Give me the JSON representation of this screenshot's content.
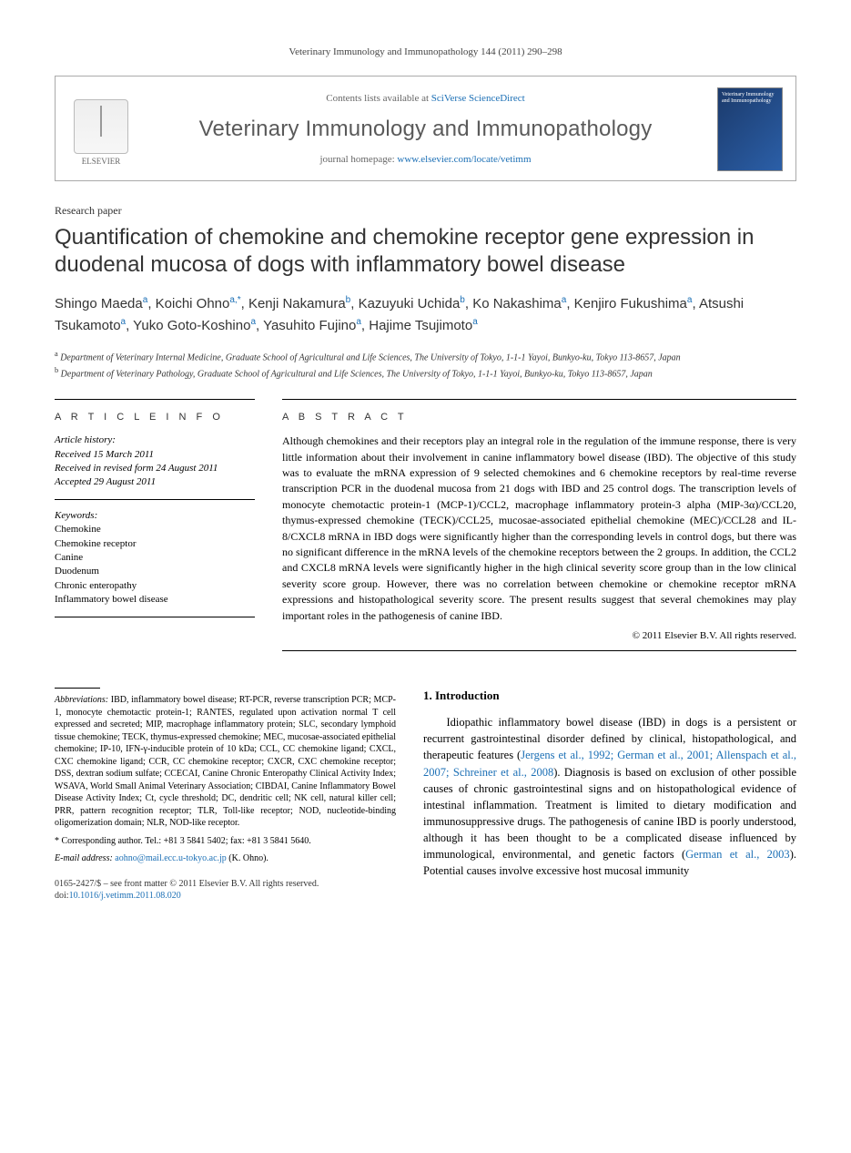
{
  "page_header": "Veterinary Immunology and Immunopathology 144 (2011) 290–298",
  "header": {
    "contents_prefix": "Contents lists available at ",
    "contents_link": "SciVerse ScienceDirect",
    "journal_name": "Veterinary Immunology and Immunopathology",
    "homepage_prefix": "journal homepage: ",
    "homepage_link": "www.elsevier.com/locate/vetimm",
    "publisher": "ELSEVIER",
    "cover_text": "Veterinary Immunology and Immunopathology"
  },
  "article": {
    "type": "Research paper",
    "title": "Quantification of chemokine and chemokine receptor gene expression in duodenal mucosa of dogs with inflammatory bowel disease",
    "authors_html": "Shingo Maeda<sup>a</sup>, Koichi Ohno<sup>a,*</sup>, Kenji Nakamura<sup>b</sup>, Kazuyuki Uchida<sup>b</sup>, Ko Nakashima<sup>a</sup>, Kenjiro Fukushima<sup>a</sup>, Atsushi Tsukamoto<sup>a</sup>, Yuko Goto-Koshino<sup>a</sup>, Yasuhito Fujino<sup>a</sup>, Hajime Tsujimoto<sup>a</sup>",
    "affiliations": [
      {
        "sup": "a",
        "text": "Department of Veterinary Internal Medicine, Graduate School of Agricultural and Life Sciences, The University of Tokyo, 1-1-1 Yayoi, Bunkyo-ku, Tokyo 113-8657, Japan"
      },
      {
        "sup": "b",
        "text": "Department of Veterinary Pathology, Graduate School of Agricultural and Life Sciences, The University of Tokyo, 1-1-1 Yayoi, Bunkyo-ku, Tokyo 113-8657, Japan"
      }
    ]
  },
  "info": {
    "heading": "A R T I C L E   I N F O",
    "history_title": "Article history:",
    "history": [
      "Received 15 March 2011",
      "Received in revised form 24 August 2011",
      "Accepted 29 August 2011"
    ],
    "keywords_title": "Keywords:",
    "keywords": [
      "Chemokine",
      "Chemokine receptor",
      "Canine",
      "Duodenum",
      "Chronic enteropathy",
      "Inflammatory bowel disease"
    ]
  },
  "abstract": {
    "heading": "A B S T R A C T",
    "text": "Although chemokines and their receptors play an integral role in the regulation of the immune response, there is very little information about their involvement in canine inflammatory bowel disease (IBD). The objective of this study was to evaluate the mRNA expression of 9 selected chemokines and 6 chemokine receptors by real-time reverse transcription PCR in the duodenal mucosa from 21 dogs with IBD and 25 control dogs. The transcription levels of monocyte chemotactic protein-1 (MCP-1)/CCL2, macrophage inflammatory protein-3 alpha (MIP-3α)/CCL20, thymus-expressed chemokine (TECK)/CCL25, mucosae-associated epithelial chemokine (MEC)/CCL28 and IL-8/CXCL8 mRNA in IBD dogs were significantly higher than the corresponding levels in control dogs, but there was no significant difference in the mRNA levels of the chemokine receptors between the 2 groups. In addition, the CCL2 and CXCL8 mRNA levels were significantly higher in the high clinical severity score group than in the low clinical severity score group. However, there was no correlation between chemokine or chemokine receptor mRNA expressions and histopathological severity score. The present results suggest that several chemokines may play important roles in the pathogenesis of canine IBD.",
    "copyright": "© 2011 Elsevier B.V. All rights reserved."
  },
  "footnotes": {
    "abbr_label": "Abbreviations:",
    "abbr_text": "IBD, inflammatory bowel disease; RT-PCR, reverse transcription PCR; MCP-1, monocyte chemotactic protein-1; RANTES, regulated upon activation normal T cell expressed and secreted; MIP, macrophage inflammatory protein; SLC, secondary lymphoid tissue chemokine; TECK, thymus-expressed chemokine; MEC, mucosae-associated epithelial chemokine; IP-10, IFN-γ-inducible protein of 10 kDa; CCL, CC chemokine ligand; CXCL, CXC chemokine ligand; CCR, CC chemokine receptor; CXCR, CXC chemokine receptor; DSS, dextran sodium sulfate; CCECAI, Canine Chronic Enteropathy Clinical Activity Index; WSAVA, World Small Animal Veterinary Association; CIBDAI, Canine Inflammatory Bowel Disease Activity Index; Ct, cycle threshold; DC, dendritic cell; NK cell, natural killer cell; PRR, pattern recognition receptor; TLR, Toll-like receptor; NOD, nucleotide-binding oligomerization domain; NLR, NOD-like receptor.",
    "corr_label": "* Corresponding author.",
    "corr_text": "Tel.: +81 3 5841 5402; fax: +81 3 5841 5640.",
    "email_label": "E-mail address:",
    "email": "aohno@mail.ecc.u-tokyo.ac.jp",
    "email_owner": "(K. Ohno)."
  },
  "footer": {
    "line1": "0165-2427/$ – see front matter © 2011 Elsevier B.V. All rights reserved.",
    "doi_prefix": "doi:",
    "doi": "10.1016/j.vetimm.2011.08.020"
  },
  "intro": {
    "heading": "1.  Introduction",
    "para": "Idiopathic inflammatory bowel disease (IBD) in dogs is a persistent or recurrent gastrointestinal disorder defined by clinical, histopathological, and therapeutic features (",
    "cite1": "Jergens et al., 1992; German et al., 2001; Allenspach et al., 2007; Schreiner et al., 2008",
    "para2": "). Diagnosis is based on exclusion of other possible causes of chronic gastrointestinal signs and on histopathological evidence of intestinal inflammation. Treatment is limited to dietary modification and immunosuppressive drugs. The pathogenesis of canine IBD is poorly understood, although it has been thought to be a complicated disease influenced by immunological, environmental, and genetic factors (",
    "cite2": "German et al., 2003",
    "para3": "). Potential causes involve excessive host mucosal immunity"
  },
  "colors": {
    "link": "#1b6fb5",
    "text": "#000000",
    "muted": "#666666",
    "journal_name": "#5a5a5a",
    "cover_bg_from": "#1b3a6b",
    "cover_bg_to": "#2b5fa8"
  }
}
